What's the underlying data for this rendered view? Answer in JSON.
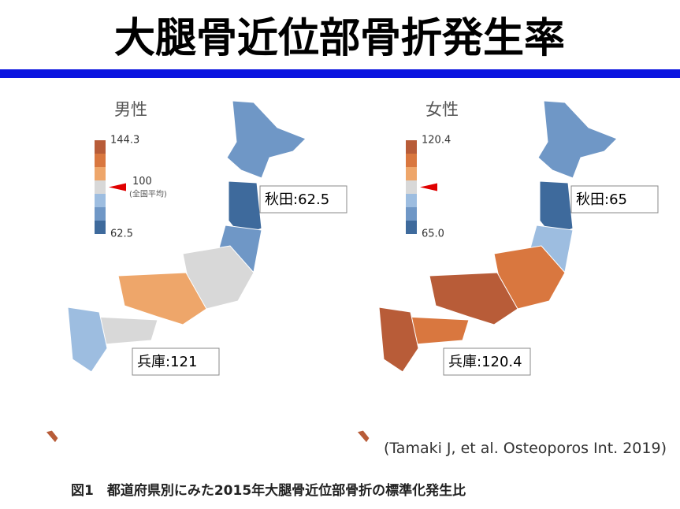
{
  "header": {
    "title": "大腿骨近位部骨折発生率"
  },
  "panels": [
    {
      "label": "男性",
      "legend": {
        "max": "144.3",
        "mid": "100",
        "mid_note": "(全国平均)",
        "min": "62.5"
      },
      "callouts": [
        "秋田:62.5",
        "兵庫:121"
      ]
    },
    {
      "label": "女性",
      "legend": {
        "max": "120.4",
        "min": "65.0"
      },
      "callouts": [
        "秋田:65",
        "兵庫:120.4"
      ]
    }
  ],
  "citation": "(Tamaki J, et al. Osteoporos Int. 2019)",
  "caption": "図1　都道府県別にみた2015年大腿骨近位部骨折の標準化発生比"
}
